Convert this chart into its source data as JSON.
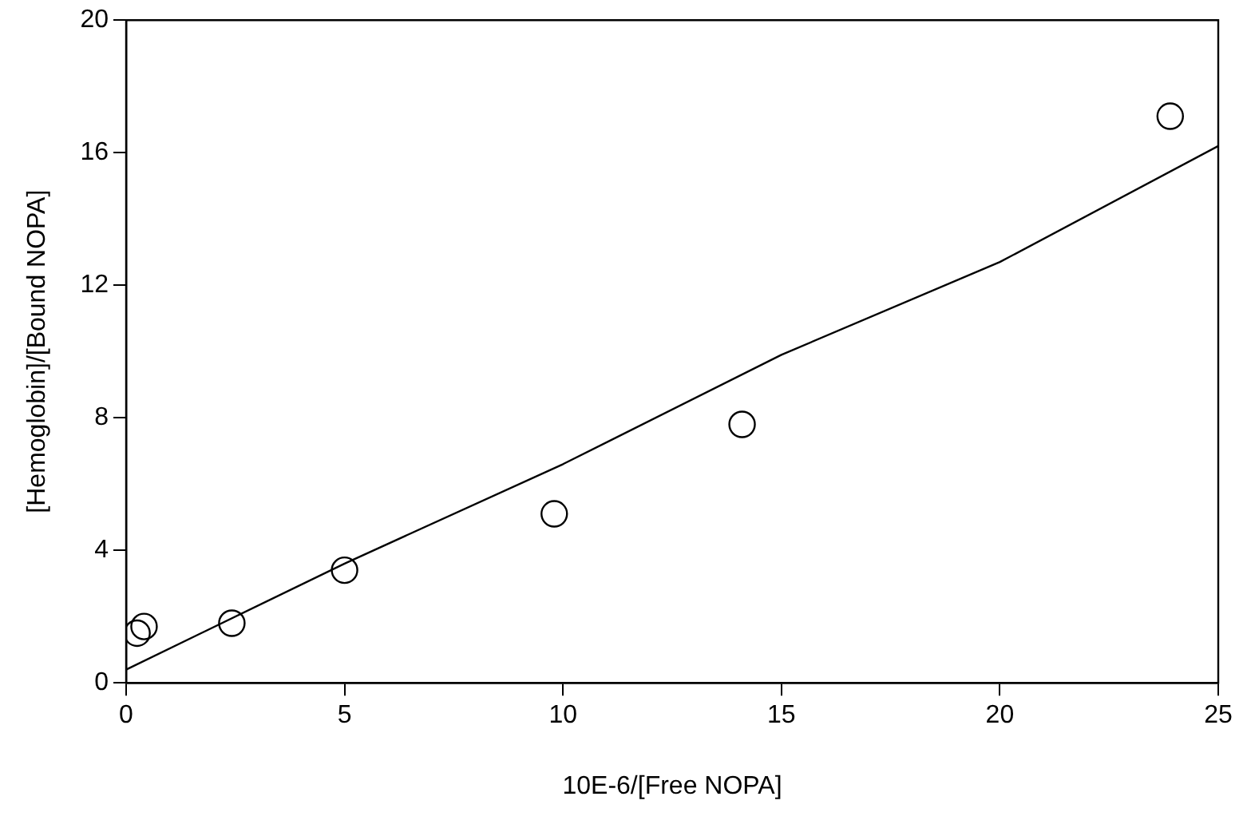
{
  "chart_data": {
    "type": "scatter",
    "xlabel": "10E-6/[Free NOPA]",
    "ylabel": "[Hemoglobin]/[Bound NOPA]",
    "xlim": [
      0,
      25
    ],
    "ylim": [
      0,
      20
    ],
    "xticks": [
      0,
      5,
      10,
      15,
      20,
      25
    ],
    "yticks": [
      0,
      4,
      8,
      12,
      16,
      20
    ],
    "grid": false,
    "legend": false,
    "marker": "circle",
    "series": [
      {
        "type": "scatter",
        "color": "#000000",
        "x": [
          0.25,
          0.41,
          2.42,
          5.0,
          9.8,
          14.1,
          23.9
        ],
        "values": [
          1.5,
          1.7,
          1.8,
          3.4,
          5.1,
          7.8,
          17.1
        ]
      },
      {
        "type": "line",
        "color": "#000000",
        "marker": "none",
        "x": [
          0,
          5,
          10,
          15,
          20,
          25
        ],
        "values": [
          0.4,
          3.6,
          6.6,
          9.9,
          12.7,
          16.2
        ]
      }
    ]
  }
}
